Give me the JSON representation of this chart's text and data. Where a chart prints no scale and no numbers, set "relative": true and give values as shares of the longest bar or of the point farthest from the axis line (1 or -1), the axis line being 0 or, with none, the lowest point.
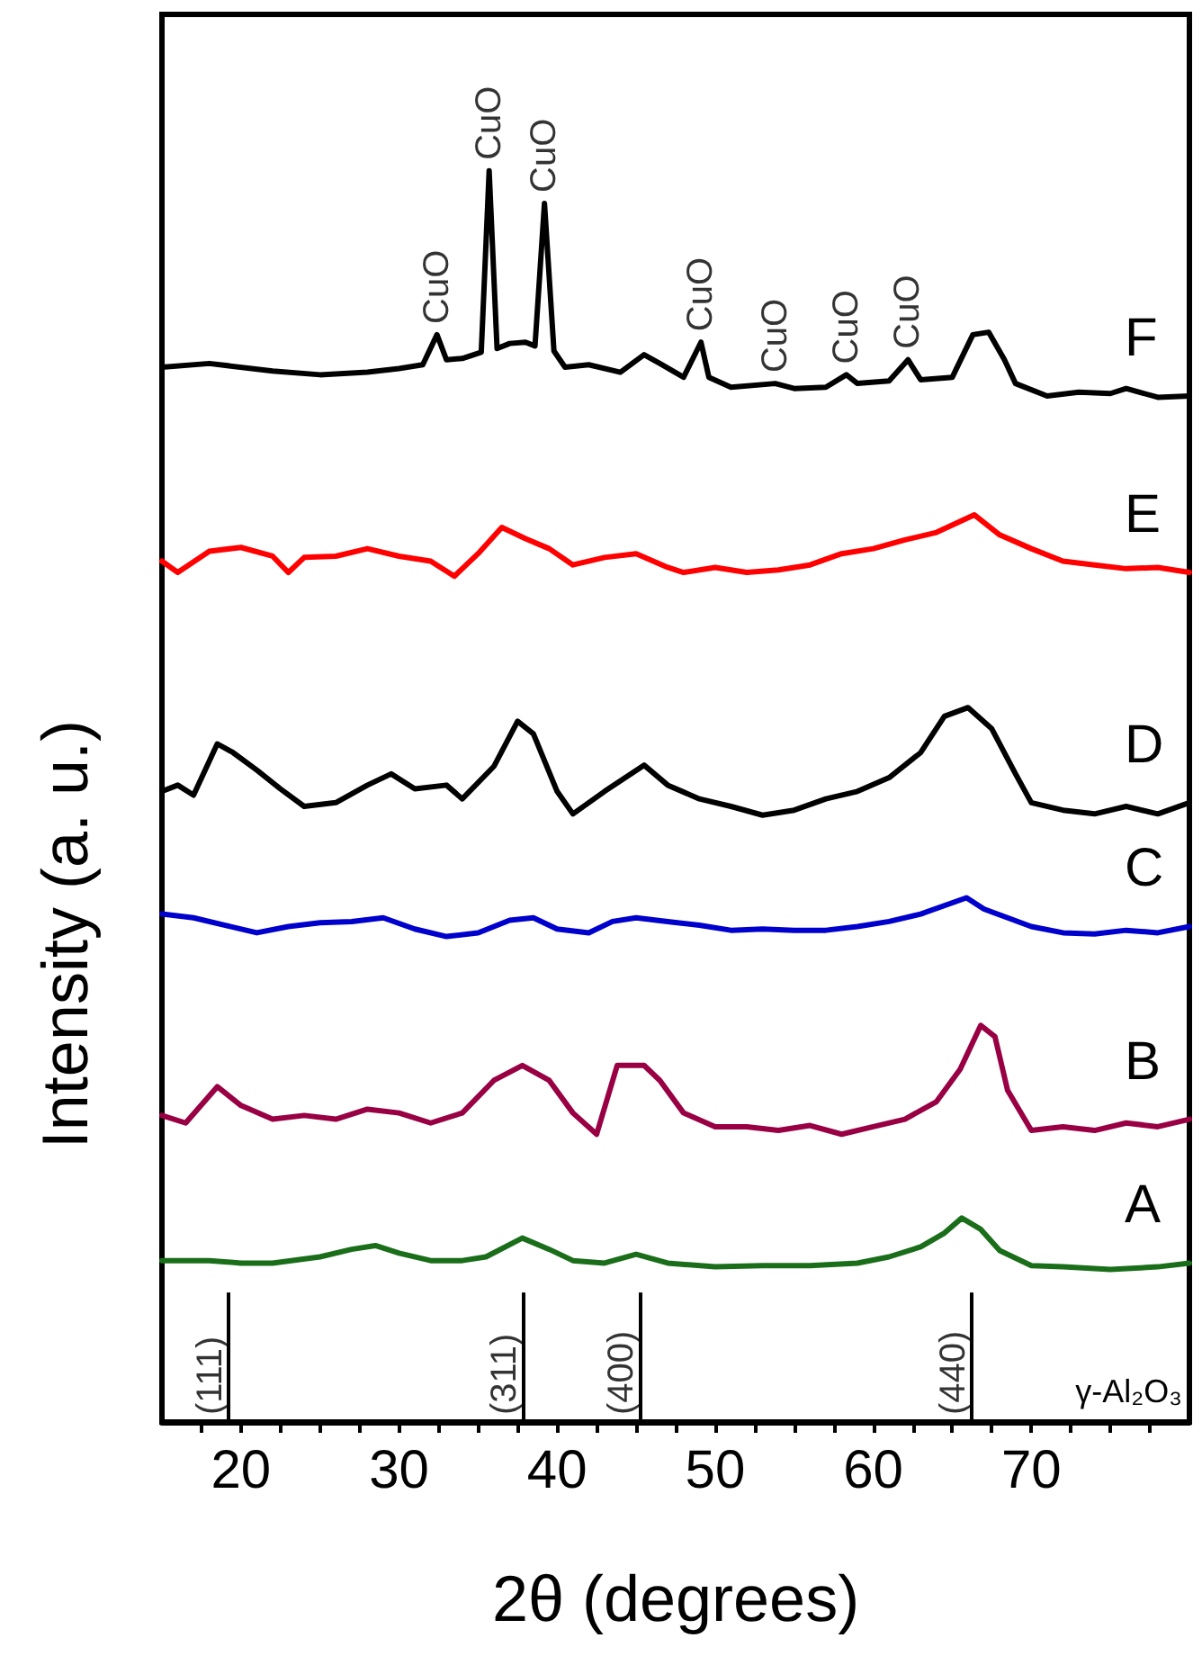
{
  "chart_data": {
    "type": "line",
    "relative": true,
    "xlabel": "2θ (degrees)",
    "ylabel": "Intensity (a. u.)",
    "xlim": [
      15,
      80
    ],
    "xticks": [
      {
        "value": 17.5,
        "label": null
      },
      20,
      {
        "value": 22.5,
        "label": null
      },
      {
        "value": 25,
        "label": null
      },
      {
        "value": 27.5,
        "label": null
      },
      30,
      {
        "value": 32.5,
        "label": null
      },
      {
        "value": 35,
        "label": null
      },
      {
        "value": 37.5,
        "label": null
      },
      40,
      {
        "value": 42.5,
        "label": null
      },
      {
        "value": 45,
        "label": null
      },
      {
        "value": 47.5,
        "label": null
      },
      50,
      {
        "value": 52.5,
        "label": null
      },
      {
        "value": 55,
        "label": null
      },
      {
        "value": 57.5,
        "label": null
      },
      60,
      {
        "value": 62.5,
        "label": null
      },
      {
        "value": 65,
        "label": null
      },
      {
        "value": 67.5,
        "label": null
      },
      70,
      {
        "value": 72.5,
        "label": null
      },
      {
        "value": 75,
        "label": null
      },
      {
        "value": 77.5,
        "label": null
      }
    ],
    "grid": false,
    "marker": "none",
    "line_style": "solid",
    "series": [
      {
        "name": "A",
        "color": "#1a6e1a",
        "x": [
          15,
          18,
          20,
          22,
          25,
          27,
          28.5,
          30,
          32,
          34,
          35.5,
          37.8,
          39.5,
          41,
          43,
          45,
          47,
          50,
          53,
          56,
          59,
          61,
          63,
          64.5,
          65.6,
          66.8,
          68,
          70,
          72,
          75,
          78,
          80
        ],
        "values": [
          0.129,
          0.129,
          0.127,
          0.127,
          0.132,
          0.138,
          0.141,
          0.135,
          0.129,
          0.129,
          0.132,
          0.147,
          0.138,
          0.129,
          0.127,
          0.134,
          0.127,
          0.124,
          0.125,
          0.125,
          0.127,
          0.132,
          0.14,
          0.151,
          0.163,
          0.154,
          0.137,
          0.125,
          0.124,
          0.122,
          0.124,
          0.127
        ]
      },
      {
        "name": "B",
        "color": "#990044",
        "x": [
          15,
          16.5,
          18.5,
          20,
          22,
          24,
          26,
          28,
          30,
          32,
          34,
          36,
          37.8,
          39.5,
          41,
          42.5,
          43.8,
          45.5,
          46.5,
          48,
          50,
          52,
          54,
          56,
          58,
          60,
          62,
          64,
          65.5,
          66.8,
          67.7,
          68.5,
          70,
          72,
          74,
          76,
          78,
          80
        ],
        "values": [
          0.245,
          0.239,
          0.268,
          0.253,
          0.242,
          0.245,
          0.242,
          0.25,
          0.247,
          0.239,
          0.247,
          0.273,
          0.285,
          0.273,
          0.247,
          0.23,
          0.285,
          0.285,
          0.273,
          0.247,
          0.236,
          0.236,
          0.233,
          0.237,
          0.23,
          0.236,
          0.242,
          0.256,
          0.282,
          0.317,
          0.308,
          0.265,
          0.233,
          0.236,
          0.233,
          0.239,
          0.236,
          0.242
        ]
      },
      {
        "name": "C",
        "color": "#0000cc",
        "x": [
          15,
          17,
          19,
          21,
          23,
          25,
          27,
          29,
          31,
          33,
          35,
          37,
          38.5,
          40,
          42,
          43.5,
          45,
          47,
          49,
          51,
          53,
          55,
          57,
          59,
          61,
          63,
          65.9,
          67,
          68.5,
          70,
          72,
          74,
          76,
          78,
          80
        ],
        "values": [
          0.406,
          0.403,
          0.397,
          0.391,
          0.396,
          0.399,
          0.4,
          0.403,
          0.394,
          0.388,
          0.391,
          0.401,
          0.403,
          0.394,
          0.391,
          0.4,
          0.403,
          0.4,
          0.397,
          0.393,
          0.394,
          0.393,
          0.393,
          0.396,
          0.4,
          0.406,
          0.419,
          0.41,
          0.403,
          0.396,
          0.391,
          0.39,
          0.393,
          0.391,
          0.396
        ]
      },
      {
        "name": "D",
        "color": "#000000",
        "x": [
          15,
          16,
          17,
          18.5,
          19.5,
          21,
          22.5,
          24,
          26,
          28,
          29.5,
          31,
          33,
          34,
          36,
          37.5,
          38.5,
          40,
          41,
          43,
          45.5,
          47,
          49,
          51,
          53,
          55,
          57,
          59,
          61,
          63,
          64.5,
          66,
          67.5,
          69,
          70,
          72,
          74,
          76,
          78,
          80
        ],
        "values": [
          0.504,
          0.509,
          0.501,
          0.542,
          0.535,
          0.521,
          0.506,
          0.492,
          0.495,
          0.509,
          0.518,
          0.506,
          0.509,
          0.498,
          0.524,
          0.56,
          0.55,
          0.504,
          0.486,
          0.504,
          0.525,
          0.509,
          0.498,
          0.492,
          0.485,
          0.489,
          0.498,
          0.504,
          0.515,
          0.535,
          0.564,
          0.571,
          0.554,
          0.518,
          0.495,
          0.489,
          0.486,
          0.492,
          0.486,
          0.495
        ]
      },
      {
        "name": "E",
        "color": "#ff0000",
        "x": [
          15,
          16,
          18,
          20,
          22,
          23,
          24,
          26,
          28,
          30,
          32,
          33.5,
          35,
          36.5,
          38,
          39.5,
          41,
          43,
          45,
          47,
          48,
          50,
          52,
          54,
          56,
          58,
          60,
          62,
          64,
          66.4,
          68,
          70,
          72,
          74,
          76,
          78,
          80
        ],
        "values": [
          0.688,
          0.679,
          0.696,
          0.699,
          0.692,
          0.679,
          0.691,
          0.692,
          0.698,
          0.692,
          0.688,
          0.676,
          0.694,
          0.715,
          0.706,
          0.698,
          0.685,
          0.691,
          0.694,
          0.683,
          0.679,
          0.683,
          0.679,
          0.681,
          0.685,
          0.694,
          0.698,
          0.705,
          0.711,
          0.725,
          0.709,
          0.698,
          0.688,
          0.685,
          0.682,
          0.683,
          0.679
        ]
      },
      {
        "name": "F",
        "color": "#000000",
        "x": [
          15,
          18,
          22,
          25,
          28,
          30,
          31.5,
          32.4,
          33,
          34,
          35.2,
          35.7,
          36.2,
          37,
          38,
          38.6,
          39.2,
          39.8,
          40.5,
          42,
          44,
          45.5,
          46.5,
          48,
          49.1,
          49.6,
          51,
          53.8,
          55,
          57,
          58.3,
          59,
          61,
          62.2,
          63,
          65,
          66.3,
          67.3,
          68.3,
          69,
          71,
          73,
          75,
          76,
          78,
          80
        ],
        "values": [
          0.843,
          0.846,
          0.84,
          0.837,
          0.839,
          0.842,
          0.845,
          0.869,
          0.849,
          0.85,
          0.855,
          1.0,
          0.858,
          0.862,
          0.863,
          0.86,
          0.974,
          0.856,
          0.843,
          0.845,
          0.839,
          0.853,
          0.846,
          0.835,
          0.863,
          0.835,
          0.827,
          0.83,
          0.826,
          0.827,
          0.837,
          0.83,
          0.832,
          0.849,
          0.833,
          0.835,
          0.869,
          0.871,
          0.849,
          0.83,
          0.82,
          0.823,
          0.822,
          0.826,
          0.819,
          0.82
        ]
      }
    ],
    "ref_lines": [
      {
        "axis": "x",
        "value": 19.2
      },
      {
        "axis": "x",
        "value": 37.8
      },
      {
        "axis": "x",
        "value": 45.2
      },
      {
        "axis": "x",
        "value": 66.2
      }
    ],
    "annotations": [
      {
        "text": "(111)",
        "x": 19.2,
        "y": 0
      },
      {
        "text": "(311)",
        "x": 37.8,
        "y": 0
      },
      {
        "text": "(400)",
        "x": 45.2,
        "y": 0
      },
      {
        "text": "(440)",
        "x": 66.2,
        "y": 0
      },
      {
        "text": "CuO",
        "x": 32.4,
        "y": 0.869
      },
      {
        "text": "CuO",
        "x": 35.7,
        "y": 1.0
      },
      {
        "text": "CuO",
        "x": 39.2,
        "y": 0.974
      },
      {
        "text": "CuO",
        "x": 49.1,
        "y": 0.863
      },
      {
        "text": "CuO",
        "x": 53.8,
        "y": 0.83
      },
      {
        "text": "CuO",
        "x": 58.3,
        "y": 0.837
      },
      {
        "text": "CuO",
        "x": 62.2,
        "y": 0.849
      },
      "γ-Al₂O₃"
    ]
  }
}
